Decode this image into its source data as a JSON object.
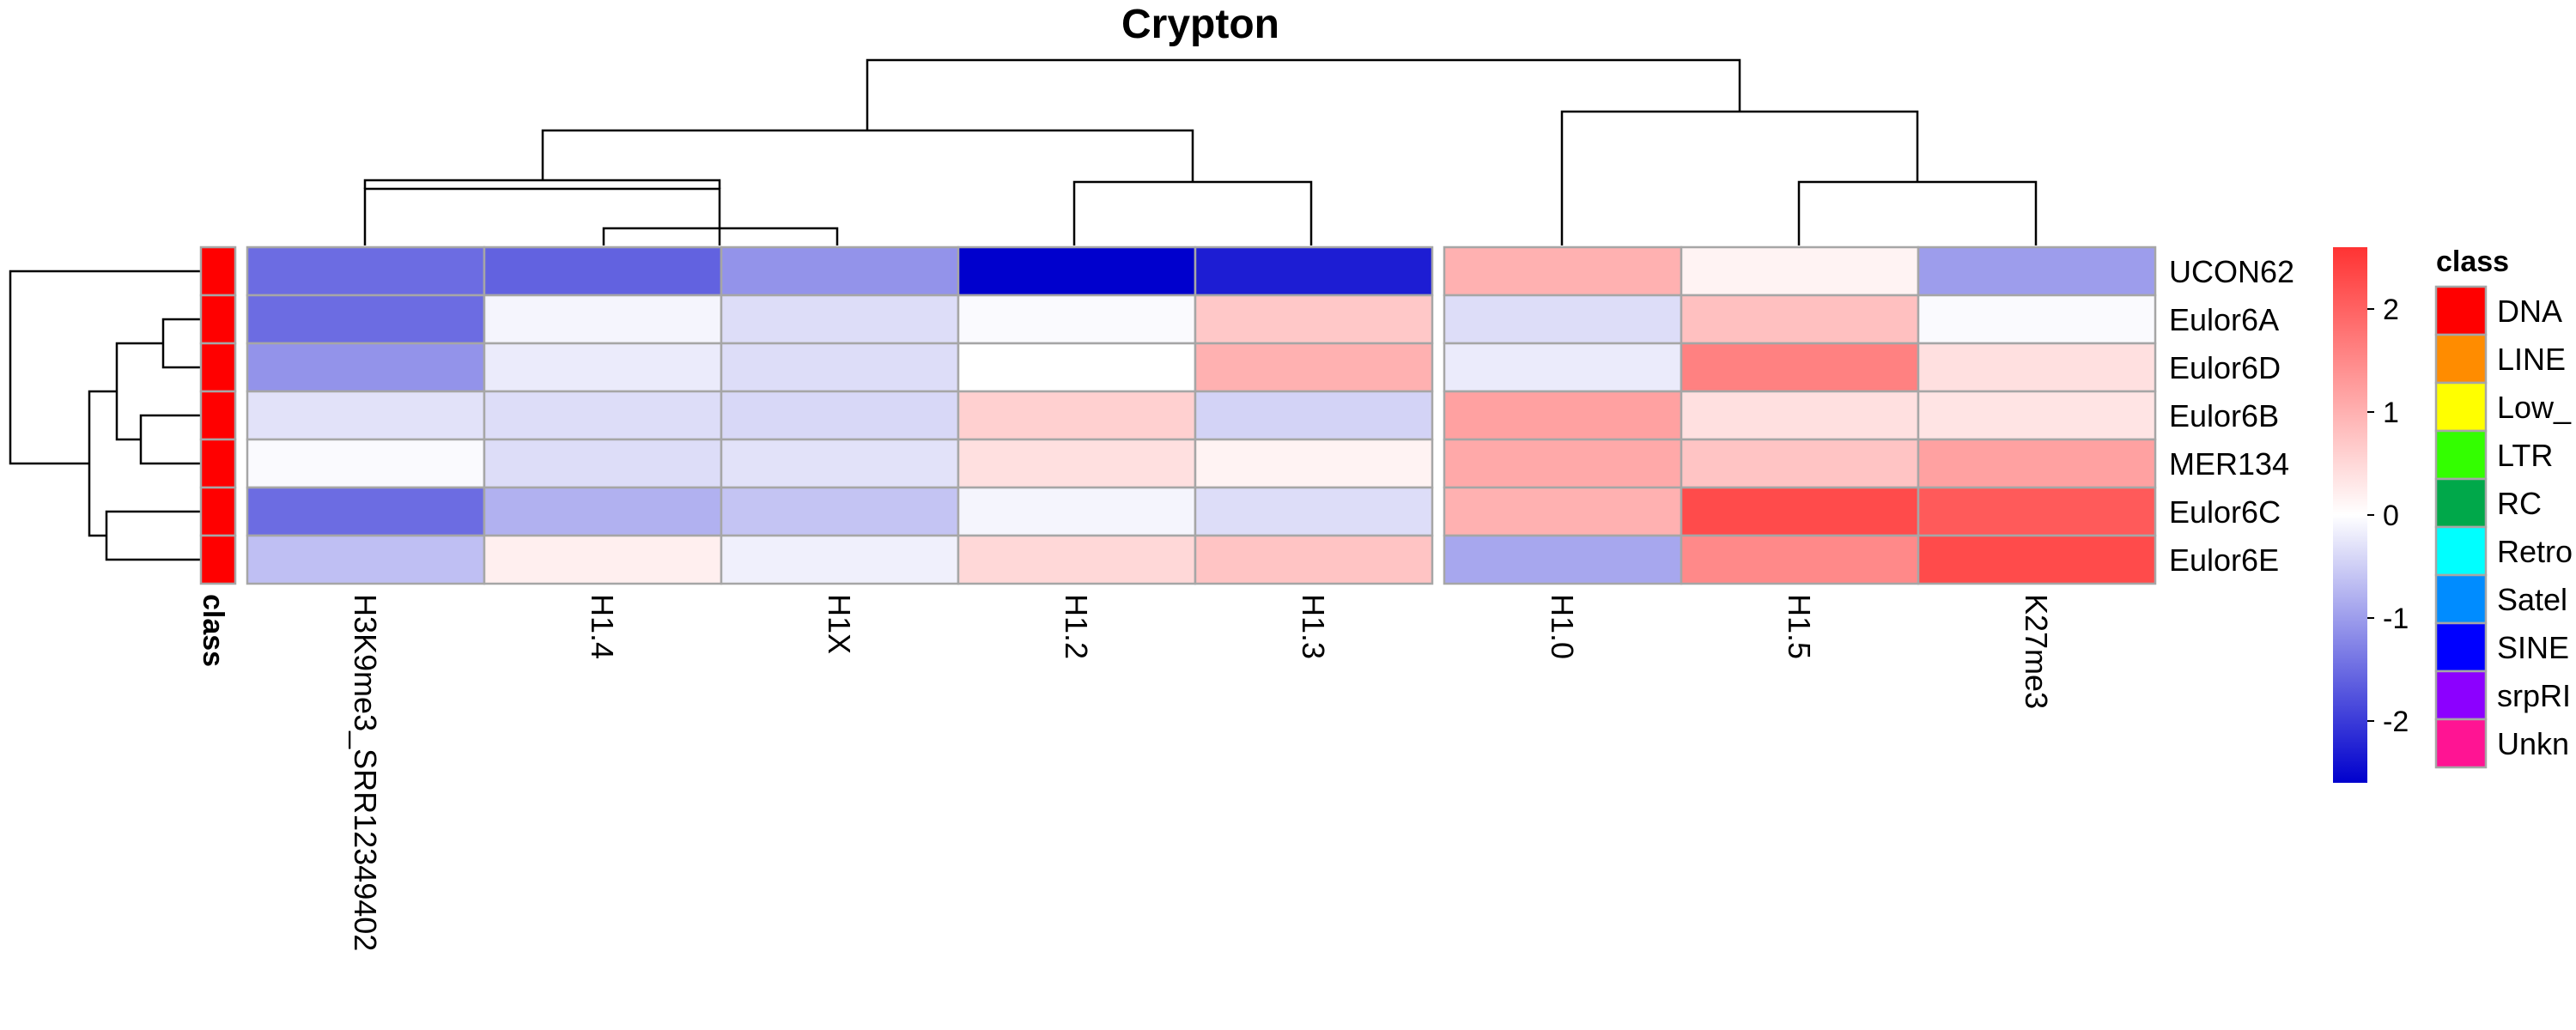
{
  "chart_data": {
    "type": "heatmap",
    "title": "Crypton",
    "rows": [
      "UCON62",
      "Eulor6A",
      "Eulor6D",
      "Eulor6B",
      "MER134",
      "Eulor6C",
      "Eulor6E"
    ],
    "columns": [
      "H3K9me3_SRR12349402",
      "H1.4",
      "H1X",
      "H1.2",
      "H1.3",
      "H1.0",
      "H1.5",
      "K27me3"
    ],
    "values": [
      [
        -1.5,
        -1.6,
        -1.1,
        -2.6,
        -2.3,
        1.0,
        0.15,
        -1.0
      ],
      [
        -1.5,
        -0.1,
        -0.35,
        -0.05,
        0.7,
        -0.35,
        0.8,
        -0.05
      ],
      [
        -1.1,
        -0.2,
        -0.35,
        0.0,
        1.0,
        -0.2,
        1.6,
        0.4
      ],
      [
        -0.3,
        -0.35,
        -0.4,
        0.6,
        -0.45,
        1.2,
        0.4,
        0.35
      ],
      [
        -0.05,
        -0.35,
        -0.3,
        0.4,
        0.15,
        1.1,
        0.75,
        1.2
      ],
      [
        -1.5,
        -0.8,
        -0.6,
        -0.1,
        -0.35,
        1.0,
        2.3,
        2.1
      ],
      [
        -0.65,
        0.2,
        -0.15,
        0.5,
        0.75,
        -0.9,
        1.5,
        2.3
      ]
    ],
    "row_annotation": {
      "label": "class",
      "values": [
        "DNA",
        "DNA",
        "DNA",
        "DNA",
        "DNA",
        "DNA",
        "DNA"
      ]
    },
    "color_scale": {
      "range": [
        -2.6,
        2.6
      ],
      "ticks": [
        2,
        1,
        0,
        -1,
        -2
      ],
      "tick_labels": [
        "2",
        "1",
        "0",
        "-1",
        "-2"
      ],
      "low_color": "#0000cd",
      "mid_color": "#ffffff",
      "high_color": "#ff3333"
    },
    "legend": {
      "title": "class",
      "placement": "right",
      "items": [
        {
          "label": "DNA",
          "color": "#ff0000"
        },
        {
          "label": "LINE",
          "color": "#ff8c00"
        },
        {
          "label": "Low_",
          "color": "#ffff00"
        },
        {
          "label": "LTR",
          "color": "#33ff00"
        },
        {
          "label": "RC",
          "color": "#00a84a"
        },
        {
          "label": "Retro",
          "color": "#00ffff"
        },
        {
          "label": "Satel",
          "color": "#008cff"
        },
        {
          "label": "SINE",
          "color": "#0000ff"
        },
        {
          "label": "srpRI",
          "color": "#8c00ff"
        },
        {
          "label": "Unkn",
          "color": "#ff1493"
        }
      ]
    },
    "grid": true,
    "column_gap_after_index": 4
  }
}
